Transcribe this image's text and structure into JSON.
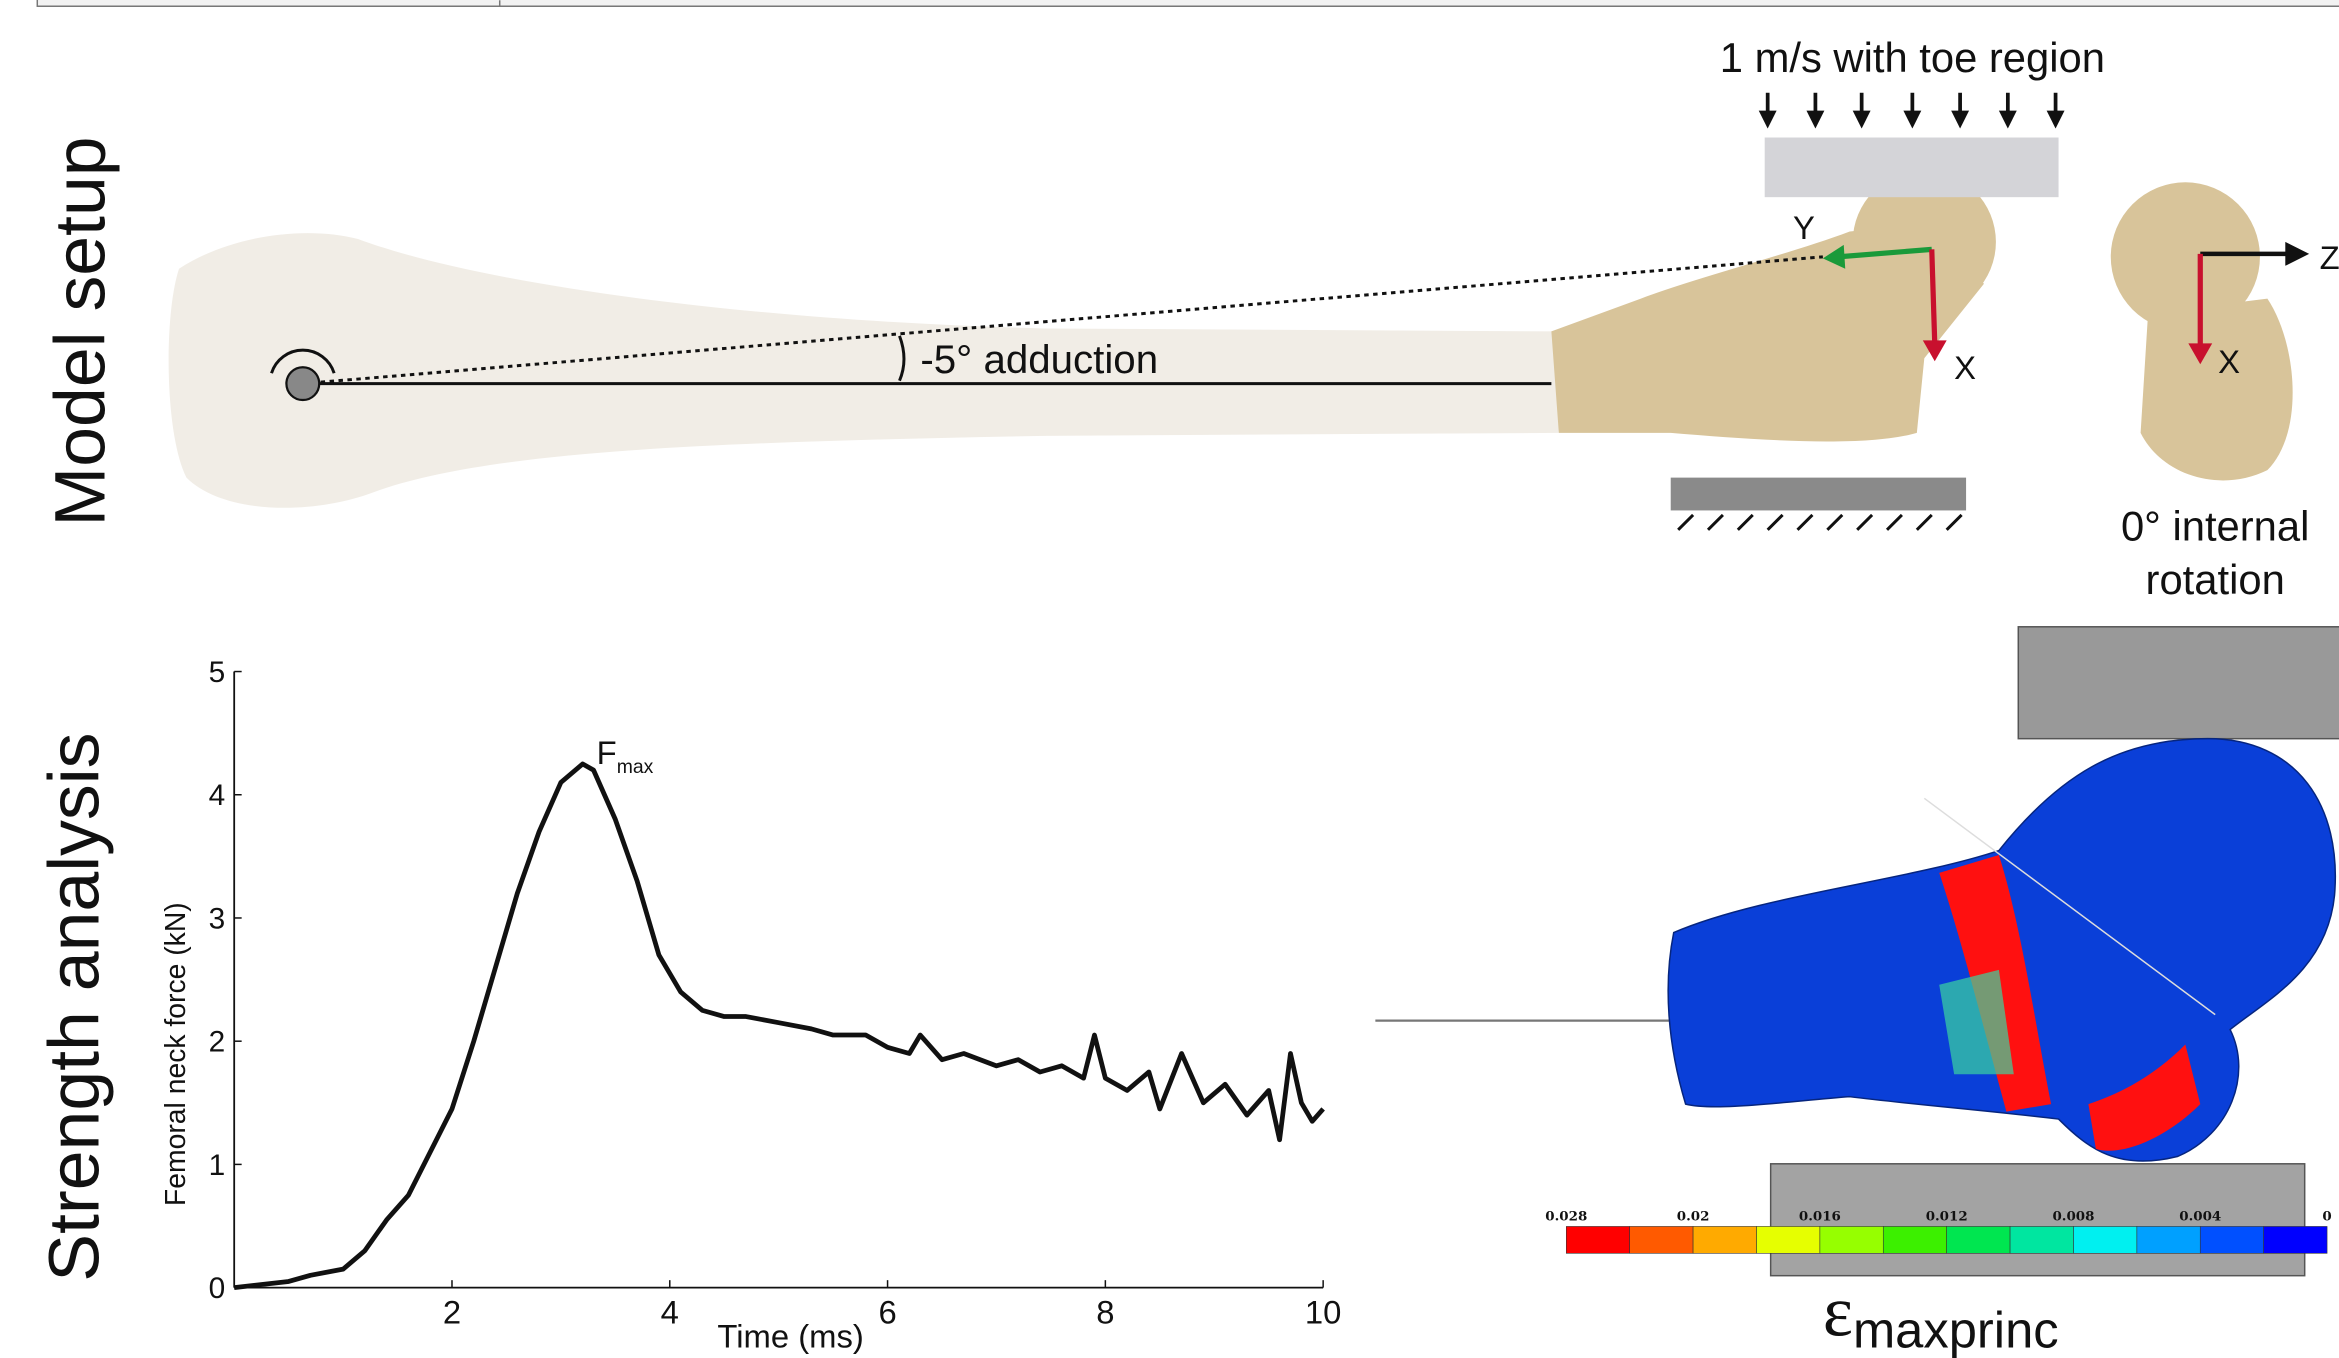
{
  "panels": {
    "top": "Model setup",
    "bottom": "Strength analysis"
  },
  "diagram": {
    "load": "1 m/s with toe region",
    "axis_y": "Y",
    "axis_x": "X",
    "axis_z": "Z",
    "axis_x2": "X",
    "angle": "-5° adduction",
    "rotation_line1": "0° internal",
    "rotation_line2": "rotation"
  },
  "chart_data": {
    "type": "line",
    "xlabel": "Time (ms)",
    "ylabel": "Femoral neck force (kN)",
    "annotation": {
      "text": "F",
      "subscript": "max"
    },
    "x": [
      0,
      0.5,
      0.7,
      1.0,
      1.2,
      1.4,
      1.6,
      1.8,
      2.0,
      2.2,
      2.4,
      2.6,
      2.8,
      3.0,
      3.2,
      3.3,
      3.5,
      3.7,
      3.9,
      4.1,
      4.3,
      4.5,
      4.7,
      5.0,
      5.3,
      5.5,
      5.8,
      6.0,
      6.2,
      6.3,
      6.5,
      6.7,
      7.0,
      7.2,
      7.4,
      7.6,
      7.8,
      7.9,
      8.0,
      8.2,
      8.4,
      8.5,
      8.7,
      8.9,
      9.1,
      9.3,
      9.5,
      9.6,
      9.7,
      9.8,
      9.9,
      10.0
    ],
    "values": [
      0,
      0.05,
      0.1,
      0.15,
      0.3,
      0.55,
      0.75,
      1.1,
      1.45,
      2.0,
      2.6,
      3.2,
      3.7,
      4.1,
      4.25,
      4.2,
      3.8,
      3.3,
      2.7,
      2.4,
      2.25,
      2.2,
      2.2,
      2.15,
      2.1,
      2.05,
      2.05,
      1.95,
      1.9,
      2.05,
      1.85,
      1.9,
      1.8,
      1.85,
      1.75,
      1.8,
      1.7,
      2.05,
      1.7,
      1.6,
      1.75,
      1.45,
      1.9,
      1.5,
      1.65,
      1.4,
      1.6,
      1.2,
      1.9,
      1.5,
      1.35,
      1.45
    ],
    "color": "#111111",
    "xlim": [
      0,
      10
    ],
    "ylim": [
      0,
      5
    ],
    "xticks": [
      2,
      4,
      6,
      8,
      10
    ],
    "yticks": [
      0,
      1,
      2,
      3,
      4,
      5
    ]
  },
  "colorbar": {
    "labels": [
      "0.028",
      "0.02",
      "0.016",
      "0.012",
      "0.008",
      "0.004",
      "0"
    ],
    "colors": [
      "#ff0000",
      "#ff5a00",
      "#ffaa00",
      "#e6ff00",
      "#96ff00",
      "#3cf000",
      "#00e650",
      "#00e6a0",
      "#00f0f0",
      "#00a0ff",
      "#0050ff",
      "#0000ff"
    ],
    "symbol": "ε",
    "subscript": "maxprinc"
  }
}
